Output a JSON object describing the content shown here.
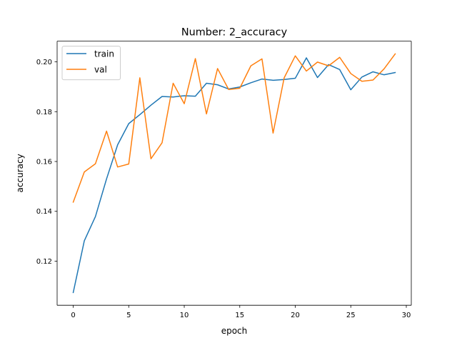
{
  "chart_data": {
    "type": "line",
    "title": "Number: 2_accuracy",
    "xlabel": "epoch",
    "ylabel": "accuracy",
    "xlim": [
      -1.45,
      30.45
    ],
    "ylim": [
      0.1023,
      0.2083
    ],
    "xticks": [
      0,
      5,
      10,
      15,
      20,
      25,
      30
    ],
    "xtick_labels": [
      "0",
      "5",
      "10",
      "15",
      "20",
      "25",
      "30"
    ],
    "yticks": [
      0.12,
      0.14,
      0.16,
      0.18,
      0.2
    ],
    "ytick_labels": [
      "0.12",
      "0.14",
      "0.16",
      "0.18",
      "0.20"
    ],
    "grid": false,
    "legend_position": "top-left",
    "x": [
      0,
      1,
      2,
      3,
      4,
      5,
      6,
      7,
      8,
      9,
      10,
      11,
      12,
      13,
      14,
      15,
      16,
      17,
      18,
      19,
      20,
      21,
      22,
      23,
      24,
      25,
      26,
      27,
      28,
      29
    ],
    "series": [
      {
        "name": "train",
        "color": "#1f77b4",
        "values": [
          0.1074,
          0.1282,
          0.1379,
          0.153,
          0.1667,
          0.1752,
          0.1788,
          0.1826,
          0.1861,
          0.1859,
          0.1864,
          0.1862,
          0.1914,
          0.1908,
          0.1891,
          0.1899,
          0.1916,
          0.1931,
          0.1926,
          0.1929,
          0.1934,
          0.2016,
          0.1937,
          0.1989,
          0.1969,
          0.1888,
          0.1939,
          0.196,
          0.1948,
          0.1957
        ]
      },
      {
        "name": "val",
        "color": "#ff7f0e",
        "values": [
          0.1437,
          0.1558,
          0.1591,
          0.1722,
          0.1578,
          0.159,
          0.1936,
          0.1611,
          0.1675,
          0.1914,
          0.1832,
          0.2013,
          0.1791,
          0.1973,
          0.1889,
          0.1894,
          0.1984,
          0.2012,
          0.1714,
          0.1936,
          0.2024,
          0.1963,
          0.1999,
          0.1984,
          0.2018,
          0.1953,
          0.1922,
          0.1927,
          0.1972,
          0.2032
        ]
      }
    ]
  }
}
